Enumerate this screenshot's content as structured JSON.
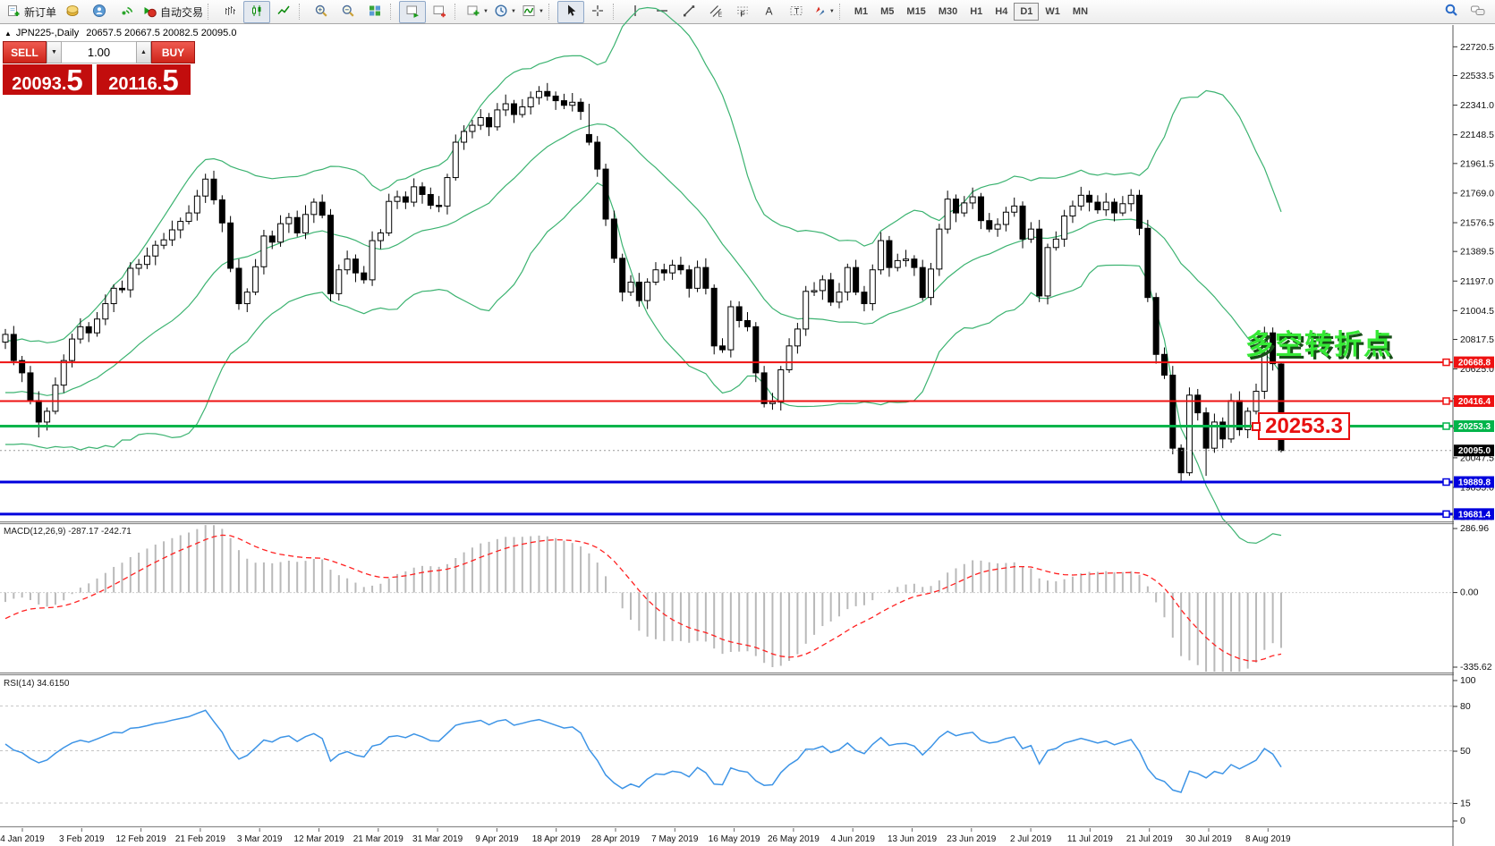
{
  "toolbar": {
    "new_order_label": "新订单",
    "autotrading_label": "自动交易",
    "timeframes": [
      "M1",
      "M5",
      "M15",
      "M30",
      "H1",
      "H4",
      "D1",
      "W1",
      "MN"
    ],
    "active_timeframe": "D1",
    "icon_names": [
      "new-order",
      "market",
      "community",
      "signals",
      "autotrading",
      "bar-chart",
      "candlestick-chart",
      "line-chart",
      "zoom-in",
      "zoom-out",
      "tile-windows",
      "auto-scroll",
      "chart-shift",
      "new-chart",
      "periods",
      "indicators",
      "cursor",
      "crosshair",
      "vertical-line",
      "horizontal-line",
      "trendline",
      "channel",
      "fibonacci",
      "text",
      "text-label",
      "arrows",
      "search",
      "chat"
    ]
  },
  "chart_title": {
    "toggle_icon": "▲",
    "symbol": "JPN225-,Daily",
    "ohlc": "20657.5 20667.5 20082.5 20095.0"
  },
  "trade_panel": {
    "sell_label": "SELL",
    "buy_label": "BUY",
    "volume": "1.00",
    "sell_price": {
      "main": "20093",
      "dot": ".",
      "pips": "5"
    },
    "buy_price": {
      "main": "20116",
      "dot": ".",
      "pips": "5"
    }
  },
  "chart_data": {
    "type": "candlestick",
    "symbol": "JPN225-",
    "timeframe": "Daily",
    "last_ohlc": {
      "open": 20657.5,
      "high": 20667.5,
      "low": 20082.5,
      "close": 20095.0
    },
    "price_axis": {
      "top_price": 22862,
      "bottom_price": 19634,
      "ticks": [
        "22720.5",
        "22533.5",
        "22341.0",
        "22148.5",
        "21961.5",
        "21769.0",
        "21576.5",
        "21389.5",
        "21197.0",
        "21004.5",
        "20817.5",
        "20625.0",
        "20432.5",
        "20240.0",
        "20047.5",
        "19855.0",
        "19662.5"
      ]
    },
    "x_axis_labels": [
      "4 Jan 2019",
      "3 Feb 2019",
      "12 Feb 2019",
      "21 Feb 2019",
      "3 Mar 2019",
      "12 Mar 2019",
      "21 Mar 2019",
      "31 Mar 2019",
      "9 Apr 2019",
      "18 Apr 2019",
      "28 Apr 2019",
      "7 May 2019",
      "16 May 2019",
      "26 May 2019",
      "4 Jun 2019",
      "13 Jun 2019",
      "23 Jun 2019",
      "2 Jul 2019",
      "11 Jul 2019",
      "21 Jul 2019",
      "30 Jul 2019",
      "8 Aug 2019"
    ],
    "first_open": 20800,
    "closes": [
      20850,
      20680,
      20600,
      20420,
      20280,
      20350,
      20520,
      20680,
      20820,
      20900,
      20860,
      20950,
      21050,
      21150,
      21140,
      21280,
      21305,
      21360,
      21430,
      21465,
      21530,
      21585,
      21640,
      21750,
      21860,
      21725,
      21575,
      21280,
      21050,
      21125,
      21290,
      21490,
      21450,
      21570,
      21610,
      21510,
      21630,
      21710,
      21625,
      21115,
      21270,
      21340,
      21250,
      21205,
      21460,
      21510,
      21715,
      21745,
      21710,
      21810,
      21760,
      21690,
      21685,
      21870,
      22100,
      22170,
      22210,
      22260,
      22200,
      22310,
      22350,
      22280,
      22330,
      22390,
      22430,
      22400,
      22370,
      22340,
      22360,
      22300,
      22100,
      21925,
      21600,
      21345,
      21125,
      21190,
      21070,
      21190,
      21270,
      21250,
      21300,
      21270,
      21150,
      21285,
      21150,
      20775,
      20750,
      21030,
      20940,
      20900,
      20600,
      20400,
      20410,
      20620,
      20775,
      20885,
      21130,
      21135,
      21205,
      21060,
      21125,
      21285,
      21125,
      21050,
      21270,
      21460,
      21285,
      21330,
      21340,
      21285,
      21090,
      21275,
      21535,
      21730,
      21640,
      21705,
      21745,
      21590,
      21535,
      21565,
      21645,
      21685,
      21470,
      21535,
      21100,
      21415,
      21470,
      21620,
      21685,
      21755,
      21710,
      21660,
      21710,
      21640,
      21700,
      21755,
      21540,
      21090,
      20720,
      20585,
      20110,
      19950,
      20455,
      20340,
      20110,
      20280,
      20170,
      20420,
      20230,
      20350,
      20480,
      20860,
      20660,
      20095
    ],
    "warmup_closes": [
      21100,
      21050,
      20980,
      20900,
      20980,
      20850,
      20700,
      20780,
      20600,
      20720,
      20500,
      20680,
      20450,
      20620,
      20380,
      20580,
      20350,
      20540,
      20300,
      20500,
      20280,
      20460,
      20250,
      20420,
      20200,
      20420,
      20300,
      20500,
      20600,
      20750
    ],
    "wick_high_pattern": [
      35,
      55,
      30,
      45,
      60,
      25,
      50,
      40
    ],
    "wick_low_pattern": [
      45,
      30,
      60,
      25,
      40,
      55,
      20,
      50
    ],
    "candle_overrides": {
      "4": {
        "low": 20180
      },
      "70": {
        "open": 22150
      },
      "141": {
        "low": 19895
      },
      "144": {
        "low": 19930
      },
      "153": {
        "open": 20657.5,
        "high": 20667.5,
        "low": 20082.5,
        "close": 20095.0
      }
    },
    "levels": [
      {
        "price": 20668.8,
        "label": "20668.8",
        "color": "#ee1111",
        "width": 2
      },
      {
        "price": 20416.4,
        "label": "20416.4",
        "color": "#ee1111",
        "width": 2
      },
      {
        "price": 20253.3,
        "label": "20253.3",
        "color": "#00b44a",
        "width": 3
      },
      {
        "price": 19889.8,
        "label": "19889.8",
        "color": "#0000dd",
        "width": 3
      },
      {
        "price": 19681.4,
        "label": "19681.4",
        "color": "#0000dd",
        "width": 3
      }
    ],
    "current_price": {
      "price": 20095.0,
      "label": "20095.0",
      "color": "#000000"
    },
    "annotations": [
      {
        "type": "text",
        "text": "多空转折点",
        "color": "#35e835"
      },
      {
        "type": "price_label",
        "text": "20253.3",
        "color": "#e81010"
      }
    ],
    "indicators": {
      "bollinger": {
        "period": 20,
        "deviation": 2,
        "color": "#3cb371"
      },
      "macd": {
        "label": "MACD(12,26,9)",
        "fast": 12,
        "slow": 26,
        "signal": 9,
        "values_text": "-287.17 -242.71",
        "axis_labels": [
          "286.96",
          "0.00",
          "-335.62"
        ],
        "axis_max": 286.96,
        "axis_min": -335.62,
        "histogram_color": "#b9b9b9",
        "signal_color": "#ff2020"
      },
      "rsi": {
        "label": "RSI(14)",
        "period": 14,
        "value_text": "34.6150",
        "axis_labels": [
          "100",
          "80",
          "50",
          "15",
          "0"
        ],
        "levels": [
          80,
          50,
          15
        ],
        "color": "#3d94e6"
      }
    }
  }
}
